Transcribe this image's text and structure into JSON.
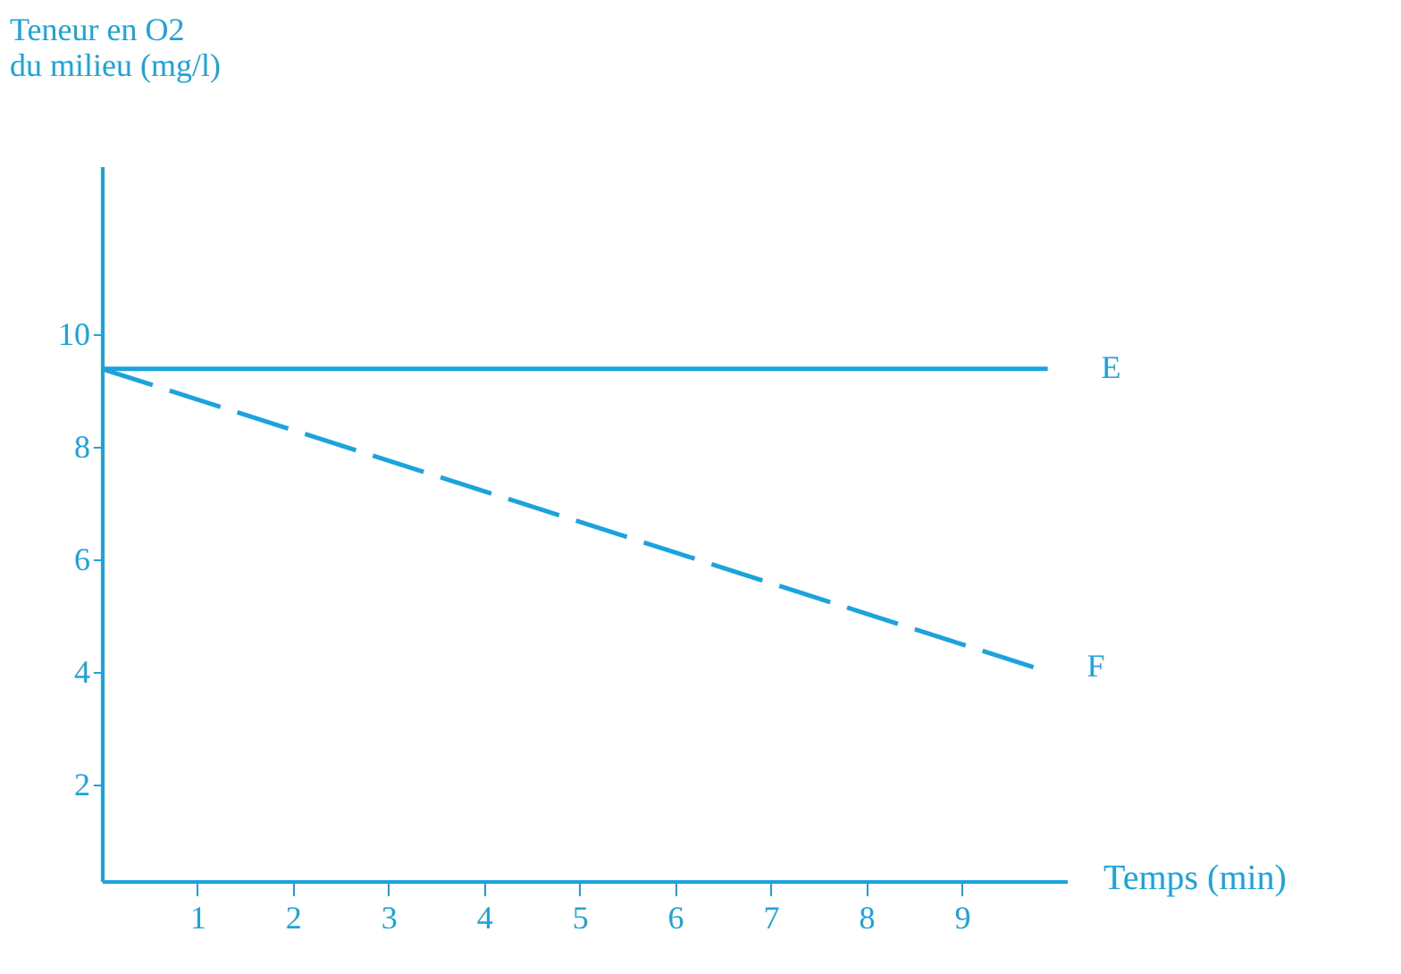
{
  "chart_data": {
    "type": "line",
    "ylabel": "Teneur en O2\ndu milieu (mg/l)",
    "xlabel": "Temps (min)",
    "xlim": [
      0,
      10.1
    ],
    "xticks": [
      1,
      2,
      3,
      4,
      5,
      6,
      7,
      8,
      9
    ],
    "ylim": [
      0.3,
      13
    ],
    "yticks": [
      2,
      4,
      6,
      8,
      10
    ],
    "grid": false,
    "marker": "none",
    "series": [
      {
        "name": "E",
        "color": "#1aa3dc",
        "x": [
          0,
          9.9
        ],
        "values": [
          9.4,
          9.4
        ],
        "line_style": "solid"
      },
      {
        "name": "F",
        "color": "#1aa3dc",
        "x": [
          0,
          9.75
        ],
        "values": [
          9.4,
          4.1
        ],
        "line_style": "dashed"
      }
    ]
  }
}
